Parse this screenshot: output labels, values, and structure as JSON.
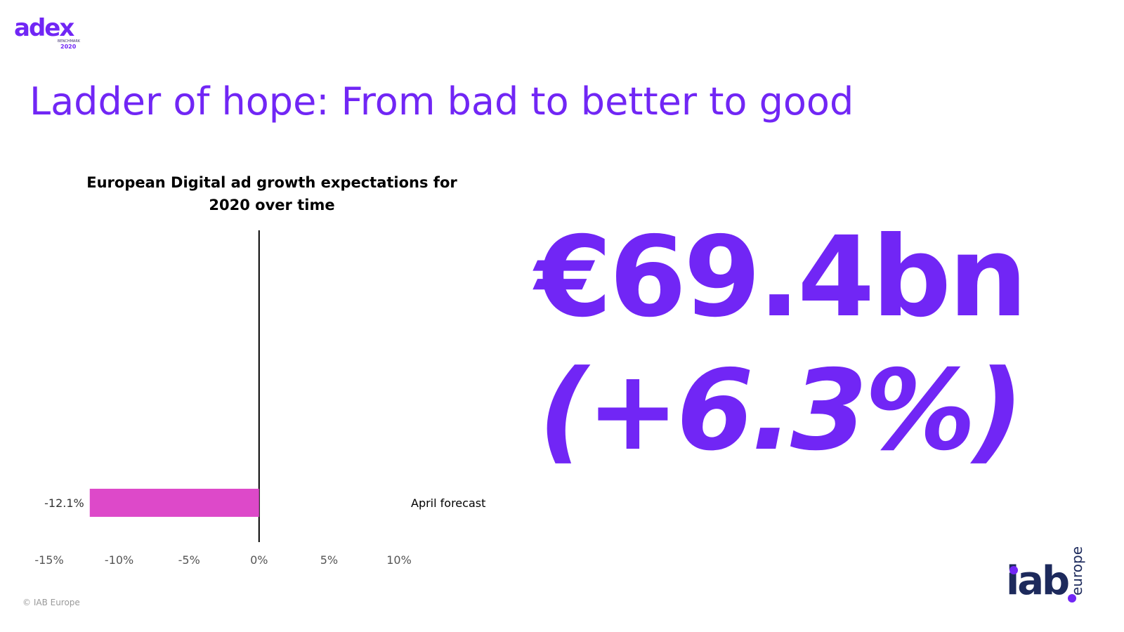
{
  "header": {
    "logo_word": "adex",
    "logo_sub": "BENCHMARK",
    "logo_year": "2020",
    "title": "Ladder of hope: From bad to better to good"
  },
  "chart_data": {
    "type": "bar",
    "orientation": "horizontal",
    "title": "European Digital ad growth expectations for 2020 over time",
    "categories": [
      "April forecast"
    ],
    "values": [
      -12.1
    ],
    "data_labels": [
      "-12.1%"
    ],
    "xlim": [
      -15,
      10
    ],
    "x_ticks": [
      "-15%",
      "-10%",
      "-5%",
      "0%",
      "5%",
      "10%"
    ],
    "grid": false,
    "bar_color": "#dd49c9"
  },
  "highlight": {
    "value": "€69.4bn",
    "change": "(+6.3%)"
  },
  "footer": {
    "brand_main": "iab",
    "brand_sub": "europe",
    "copyright": "© IAB Europe"
  },
  "colors": {
    "accent": "#7126f5",
    "navy": "#1d2a5c",
    "bar": "#dd49c9"
  }
}
